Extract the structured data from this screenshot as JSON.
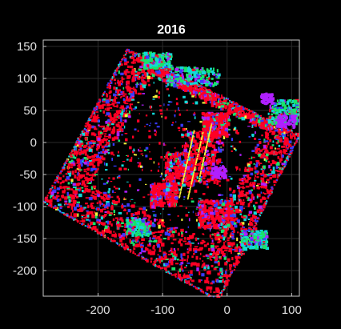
{
  "chart_data": {
    "type": "scatter",
    "title": "2016",
    "xlabel": "",
    "ylabel": "",
    "xlim": [
      -285,
      112
    ],
    "ylim": [
      -240,
      160
    ],
    "xticks": [
      -200,
      -100,
      0,
      100
    ],
    "yticks": [
      -200,
      -150,
      -100,
      -50,
      0,
      50,
      100,
      150
    ],
    "xtick_labels": [
      "-200",
      "-100",
      "0",
      "100"
    ],
    "ytick_labels": [
      "-200",
      "-150",
      "-100",
      "-50",
      "0",
      "50",
      "100",
      "150"
    ],
    "grid": true,
    "background": "#000000",
    "series": [
      {
        "name": "red",
        "color": "#ff0024"
      },
      {
        "name": "blue",
        "color": "#3a3aff"
      },
      {
        "name": "green",
        "color": "#18e36a"
      },
      {
        "name": "cyan",
        "color": "#12d8d8"
      },
      {
        "name": "magenta",
        "color": "#b020ff"
      },
      {
        "name": "yellow",
        "color": "#f4f43a"
      }
    ],
    "map_frame": {
      "outer_corners": [
        [
          -155,
          146
        ],
        [
          110,
          12
        ],
        [
          -15,
          -245
        ],
        [
          -285,
          -92
        ]
      ],
      "inner_corners": [
        [
          -118,
          108
        ],
        [
          58,
          22
        ],
        [
          -32,
          -155
        ],
        [
          -213,
          -63
        ]
      ]
    }
  }
}
